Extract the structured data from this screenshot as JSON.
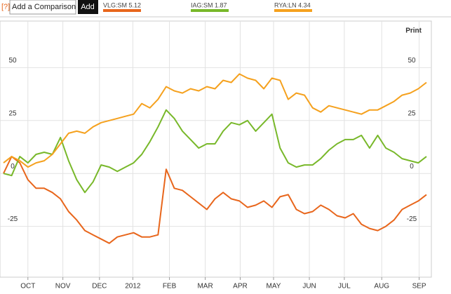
{
  "toolbar": {
    "help": "[?]",
    "input": "Add a Comparison",
    "button": "Add",
    "print": "Print"
  },
  "chart_data": {
    "type": "line",
    "xlim": [
      -0.43,
      52.6
    ],
    "xticks": [
      {
        "value": 3.0,
        "label": "OCT"
      },
      {
        "value": 7.3,
        "label": "NOV"
      },
      {
        "value": 11.8,
        "label": "DEC"
      },
      {
        "value": 15.9,
        "label": "2012"
      },
      {
        "value": 20.4,
        "label": "FEB"
      },
      {
        "value": 24.8,
        "label": "MAR"
      },
      {
        "value": 29.1,
        "label": "APR"
      },
      {
        "value": 33.2,
        "label": "MAY"
      },
      {
        "value": 37.6,
        "label": "JUN"
      },
      {
        "value": 41.9,
        "label": "JUL"
      },
      {
        "value": 46.5,
        "label": "AUG"
      },
      {
        "value": 51.1,
        "label": "SEP"
      }
    ],
    "ylim": [
      -49,
      72
    ],
    "yticks": [
      -25,
      0,
      25,
      50
    ],
    "grid": true,
    "series": [
      {
        "name": "VLG:SM 5.12",
        "color": "#e8661c",
        "values": [
          0,
          8,
          5,
          -3,
          -7,
          -7,
          -9,
          -12,
          -18,
          -22,
          -27,
          -29,
          -31,
          -33,
          -30,
          -29,
          -28,
          -30,
          -30,
          -29,
          2,
          -7,
          -8,
          -11,
          -14,
          -17,
          -12,
          -9,
          -12,
          -13,
          -16,
          -15,
          -13,
          -16,
          -11,
          -10,
          -17,
          -19,
          -18,
          -15,
          -17,
          -20,
          -21,
          -19,
          -24,
          -26,
          -27,
          -25,
          -22,
          -17,
          -15,
          -13,
          -10
        ]
      },
      {
        "name": "IAG:SM 1.87",
        "color": "#78b82a",
        "values": [
          0,
          -1,
          8,
          5,
          9,
          10,
          9,
          17,
          6,
          -3,
          -9,
          -4,
          4,
          3,
          1,
          3,
          5,
          9,
          15,
          22,
          30,
          26,
          20,
          16,
          12,
          14,
          14,
          20,
          24,
          23,
          25,
          20,
          24,
          28,
          12,
          5,
          3,
          4,
          4,
          7,
          11,
          14,
          16,
          16,
          18,
          12,
          18,
          12,
          10,
          7,
          6,
          5,
          8
        ]
      },
      {
        "name": "RYA:LN 4.34",
        "color": "#f5a11e",
        "values": [
          5,
          8,
          6,
          3,
          5,
          6,
          9,
          14,
          19,
          20,
          19,
          22,
          24,
          25,
          26,
          27,
          28,
          33,
          31,
          35,
          41,
          39,
          38,
          40,
          39,
          41,
          40,
          44,
          43,
          47,
          45,
          44,
          40,
          45,
          44,
          35,
          38,
          37,
          31,
          29,
          32,
          31,
          30,
          29,
          28,
          30,
          30,
          32,
          34,
          37,
          38,
          40,
          43
        ]
      }
    ]
  }
}
